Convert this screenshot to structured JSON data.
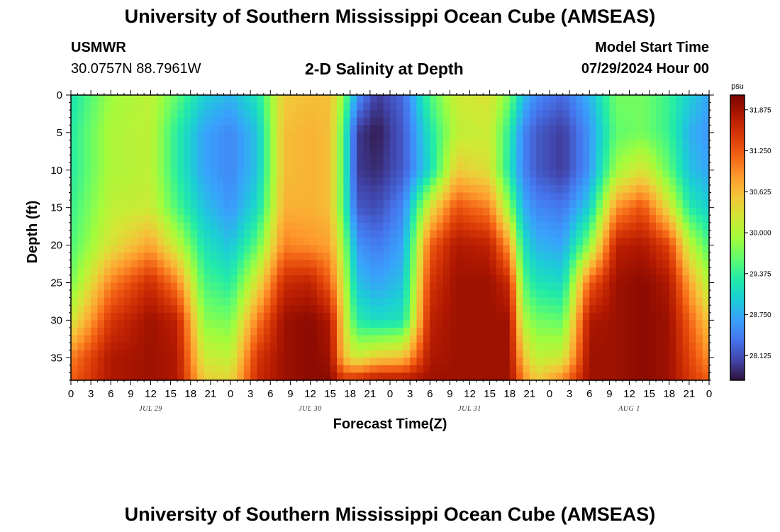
{
  "header": {
    "title": "University of Southern Mississippi Ocean Cube (AMSEAS)",
    "station": "USMWR",
    "coords": "30.0757N  88.7961W",
    "subtitle": "2-D Salinity at Depth",
    "model_start_label": "Model Start Time",
    "model_start_value": "07/29/2024 Hour 00"
  },
  "footer": {
    "title": "University of Southern Mississippi Ocean Cube (AMSEAS)"
  },
  "colors": {
    "background": "#ffffff",
    "palette": [
      "#30123b",
      "#4145ab",
      "#4675ed",
      "#39a2fc",
      "#1bcfd4",
      "#24eca6",
      "#61fc6c",
      "#a4fc3b",
      "#d1e834",
      "#f3c63a",
      "#fe9b2d",
      "#f36315",
      "#d93806",
      "#b11901",
      "#7a0402"
    ]
  },
  "chart_data": {
    "type": "heatmap",
    "title": "2-D Salinity at Depth",
    "xlabel": "Forecast Time(Z)",
    "ylabel": "Depth (ft)",
    "x_range_hours": [
      0,
      96
    ],
    "y_range_ft": [
      0,
      38
    ],
    "x_tick_labels": [
      "0",
      "3",
      "6",
      "9",
      "12",
      "15",
      "18",
      "21",
      "0",
      "3",
      "6",
      "9",
      "12",
      "15",
      "18",
      "21",
      "0",
      "3",
      "6",
      "9",
      "12",
      "15",
      "18",
      "21",
      "0",
      "3",
      "6",
      "9",
      "12",
      "15",
      "18",
      "21",
      "0"
    ],
    "x_tick_hours": [
      0,
      3,
      6,
      9,
      12,
      15,
      18,
      21,
      24,
      27,
      30,
      33,
      36,
      39,
      42,
      45,
      48,
      51,
      54,
      57,
      60,
      63,
      66,
      69,
      72,
      75,
      78,
      81,
      84,
      87,
      90,
      93,
      96
    ],
    "y_tick_labels": [
      "0",
      "5",
      "10",
      "15",
      "20",
      "25",
      "30",
      "35"
    ],
    "y_tick_values": [
      0,
      5,
      10,
      15,
      20,
      25,
      30,
      35
    ],
    "date_labels": [
      {
        "label": "JUL 29",
        "hour": 12
      },
      {
        "label": "JUL 30",
        "hour": 36
      },
      {
        "label": "JUL 31",
        "hour": 60
      },
      {
        "label": "AUG 1",
        "hour": 84
      }
    ],
    "colorbar": {
      "unit": "psu",
      "range": [
        27.75,
        32.1
      ],
      "tick_labels": [
        "31.875",
        "31.250",
        "30.625",
        "30.000",
        "29.375",
        "28.750",
        "28.125"
      ],
      "tick_values": [
        31.875,
        31.25,
        30.625,
        30.0,
        29.375,
        28.75,
        28.125
      ]
    },
    "field_model": {
      "description": "Approximate salinity field read from the image (psu), vertical profiles at key forecast hours, depths in ft",
      "depths": [
        0,
        5,
        10,
        15,
        20,
        25,
        30,
        35,
        38
      ],
      "profiles": [
        {
          "hour": 0,
          "values": [
            29.2,
            29.3,
            29.3,
            29.4,
            29.5,
            29.7,
            30.2,
            31.0,
            31.2
          ]
        },
        {
          "hour": 6,
          "values": [
            29.9,
            30.0,
            30.0,
            30.1,
            30.3,
            31.0,
            31.5,
            31.8,
            31.8
          ]
        },
        {
          "hour": 12,
          "values": [
            30.1,
            30.1,
            30.1,
            30.2,
            30.8,
            31.6,
            31.9,
            31.9,
            31.9
          ]
        },
        {
          "hour": 16,
          "values": [
            29.6,
            29.3,
            29.3,
            29.5,
            30.1,
            31.0,
            31.7,
            31.8,
            31.8
          ]
        },
        {
          "hour": 20,
          "values": [
            29.0,
            28.7,
            28.7,
            28.9,
            29.2,
            29.5,
            29.8,
            30.2,
            30.5
          ]
        },
        {
          "hour": 24,
          "values": [
            28.8,
            28.5,
            28.5,
            28.6,
            28.9,
            29.3,
            29.7,
            30.1,
            30.4
          ]
        },
        {
          "hour": 28,
          "values": [
            29.2,
            28.9,
            28.9,
            29.1,
            29.6,
            30.3,
            31.0,
            31.5,
            31.6
          ]
        },
        {
          "hour": 32,
          "values": [
            30.5,
            30.6,
            30.6,
            30.7,
            31.0,
            31.6,
            31.9,
            31.9,
            31.9
          ]
        },
        {
          "hour": 36,
          "values": [
            30.6,
            30.7,
            30.7,
            30.7,
            30.9,
            31.7,
            32.0,
            32.0,
            32.0
          ]
        },
        {
          "hour": 39,
          "values": [
            30.6,
            30.6,
            30.6,
            30.6,
            30.8,
            31.2,
            31.8,
            31.9,
            32.0
          ]
        },
        {
          "hour": 41,
          "values": [
            29.8,
            29.5,
            29.5,
            29.5,
            29.9,
            30.2,
            30.4,
            30.6,
            31.5
          ]
        },
        {
          "hour": 43,
          "values": [
            28.6,
            28.0,
            28.0,
            28.2,
            28.6,
            28.9,
            29.3,
            30.2,
            31.6
          ]
        },
        {
          "hour": 46,
          "values": [
            28.0,
            27.8,
            27.9,
            28.1,
            28.4,
            28.7,
            29.1,
            30.5,
            31.8
          ]
        },
        {
          "hour": 50,
          "values": [
            28.3,
            28.2,
            28.2,
            28.5,
            28.7,
            28.9,
            29.2,
            30.6,
            31.8
          ]
        },
        {
          "hour": 54,
          "values": [
            29.5,
            29.2,
            29.1,
            30.3,
            31.2,
            31.5,
            31.7,
            31.8,
            31.9
          ]
        },
        {
          "hour": 58,
          "values": [
            30.2,
            30.1,
            30.5,
            31.3,
            31.8,
            31.9,
            31.9,
            31.9,
            31.9
          ]
        },
        {
          "hour": 63,
          "values": [
            30.3,
            30.2,
            30.3,
            31.0,
            31.7,
            31.9,
            31.9,
            31.9,
            31.9
          ]
        },
        {
          "hour": 66,
          "values": [
            29.7,
            29.3,
            29.2,
            29.8,
            30.8,
            31.6,
            31.9,
            31.9,
            31.9
          ]
        },
        {
          "hour": 68,
          "values": [
            28.9,
            28.5,
            28.5,
            28.8,
            29.2,
            29.6,
            30.0,
            30.6,
            31.0
          ]
        },
        {
          "hour": 70,
          "values": [
            28.5,
            28.2,
            28.2,
            28.5,
            28.8,
            29.2,
            29.7,
            30.1,
            30.5
          ]
        },
        {
          "hour": 74,
          "values": [
            28.3,
            28.0,
            28.0,
            28.4,
            28.7,
            29.1,
            29.6,
            30.2,
            31.0
          ]
        },
        {
          "hour": 78,
          "values": [
            28.8,
            28.6,
            28.6,
            29.0,
            29.8,
            31.2,
            31.8,
            31.9,
            31.9
          ]
        },
        {
          "hour": 82,
          "values": [
            29.7,
            29.6,
            29.9,
            30.9,
            31.7,
            31.9,
            31.9,
            31.9,
            31.9
          ]
        },
        {
          "hour": 86,
          "values": [
            29.7,
            29.7,
            30.3,
            31.3,
            31.8,
            32.0,
            32.0,
            32.0,
            32.0
          ]
        },
        {
          "hour": 90,
          "values": [
            29.4,
            29.4,
            29.6,
            30.3,
            31.4,
            31.8,
            31.9,
            31.9,
            31.9
          ]
        },
        {
          "hour": 93,
          "values": [
            29.0,
            28.8,
            28.9,
            29.3,
            30.1,
            30.8,
            31.2,
            31.4,
            31.5
          ]
        },
        {
          "hour": 96,
          "values": [
            28.7,
            28.6,
            28.7,
            29.0,
            29.5,
            30.0,
            30.5,
            30.9,
            31.2
          ]
        }
      ]
    }
  }
}
